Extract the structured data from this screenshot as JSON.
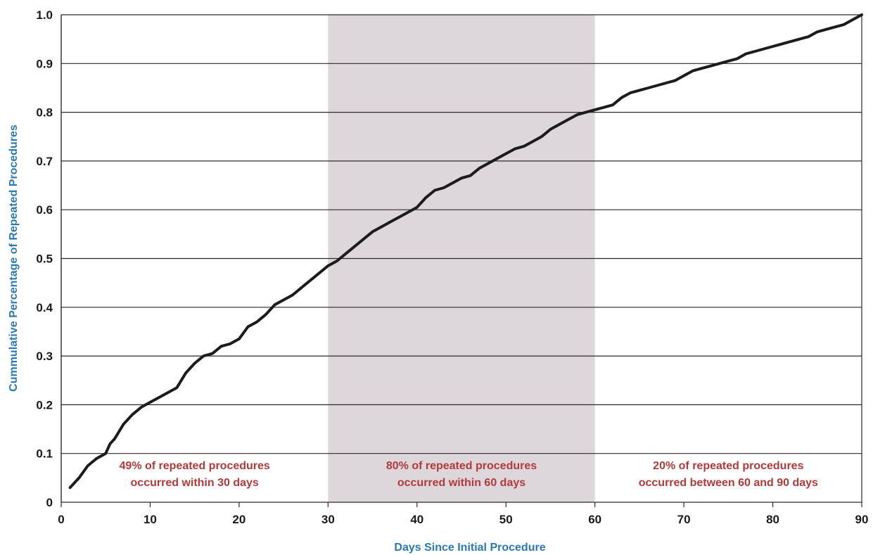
{
  "chart_data": {
    "type": "line",
    "xlabel": "Days Since Initial Procedure",
    "ylabel": "Cummulative Percentage of Repeated Procedures",
    "xlim": [
      0,
      90
    ],
    "ylim": [
      0,
      1.0
    ],
    "x_ticks": [
      "0",
      "10",
      "20",
      "30",
      "40",
      "50",
      "60",
      "70",
      "80",
      "90"
    ],
    "y_ticks": [
      "0",
      "0.1",
      "0.2",
      "0.3",
      "0.4",
      "0.5",
      "0.6",
      "0.7",
      "0.8",
      "0.9",
      "1.0"
    ],
    "grid": "horizontal",
    "shaded_region": {
      "x_start": 30,
      "x_end": 60
    },
    "annotations": [
      {
        "lines": [
          "49% of repeated procedures",
          "occurred within 30 days"
        ],
        "x_center": 15
      },
      {
        "lines": [
          "80% of repeated procedures",
          "occurred within 60 days"
        ],
        "x_center": 45
      },
      {
        "lines": [
          "20% of repeated procedures",
          "occurred between 60 and 90 days"
        ],
        "x_center": 75
      }
    ],
    "series": [
      {
        "x": [
          1,
          2,
          3,
          4,
          5,
          5.5,
          6,
          7,
          8,
          9,
          10,
          11,
          12,
          13,
          14,
          15,
          16,
          17,
          18,
          19,
          20,
          21,
          22,
          23,
          24,
          25,
          26,
          27,
          28,
          29,
          30,
          31,
          32,
          33,
          34,
          35,
          36,
          37,
          38,
          39,
          40,
          41,
          42,
          43,
          44,
          45,
          46,
          47,
          48,
          49,
          50,
          51,
          52,
          53,
          54,
          55,
          56,
          57,
          58,
          59,
          60,
          61,
          62,
          63,
          64,
          65,
          66,
          67,
          68,
          69,
          70,
          71,
          72,
          73,
          74,
          75,
          76,
          77,
          78,
          79,
          80,
          81,
          82,
          83,
          84,
          85,
          86,
          87,
          88,
          89,
          90
        ],
        "y": [
          0.03,
          0.05,
          0.075,
          0.09,
          0.1,
          0.12,
          0.13,
          0.16,
          0.18,
          0.195,
          0.205,
          0.215,
          0.225,
          0.235,
          0.265,
          0.285,
          0.3,
          0.305,
          0.32,
          0.325,
          0.335,
          0.36,
          0.37,
          0.385,
          0.405,
          0.415,
          0.425,
          0.44,
          0.455,
          0.47,
          0.485,
          0.495,
          0.51,
          0.525,
          0.54,
          0.555,
          0.565,
          0.575,
          0.585,
          0.595,
          0.605,
          0.625,
          0.64,
          0.645,
          0.655,
          0.665,
          0.67,
          0.685,
          0.695,
          0.705,
          0.715,
          0.725,
          0.73,
          0.74,
          0.75,
          0.765,
          0.775,
          0.785,
          0.795,
          0.8,
          0.805,
          0.81,
          0.815,
          0.83,
          0.84,
          0.845,
          0.85,
          0.855,
          0.86,
          0.865,
          0.875,
          0.885,
          0.89,
          0.895,
          0.9,
          0.905,
          0.91,
          0.92,
          0.925,
          0.93,
          0.935,
          0.94,
          0.945,
          0.95,
          0.955,
          0.965,
          0.97,
          0.975,
          0.98,
          0.99,
          1.0
        ]
      }
    ],
    "colors": {
      "line": "#1c1c1c",
      "shade": "#ddd7dc",
      "grid": "#2a2a2a",
      "axis_title": "#2a7ab0",
      "annotation": "#b33a3a",
      "tick": "#1a1a1a"
    }
  }
}
